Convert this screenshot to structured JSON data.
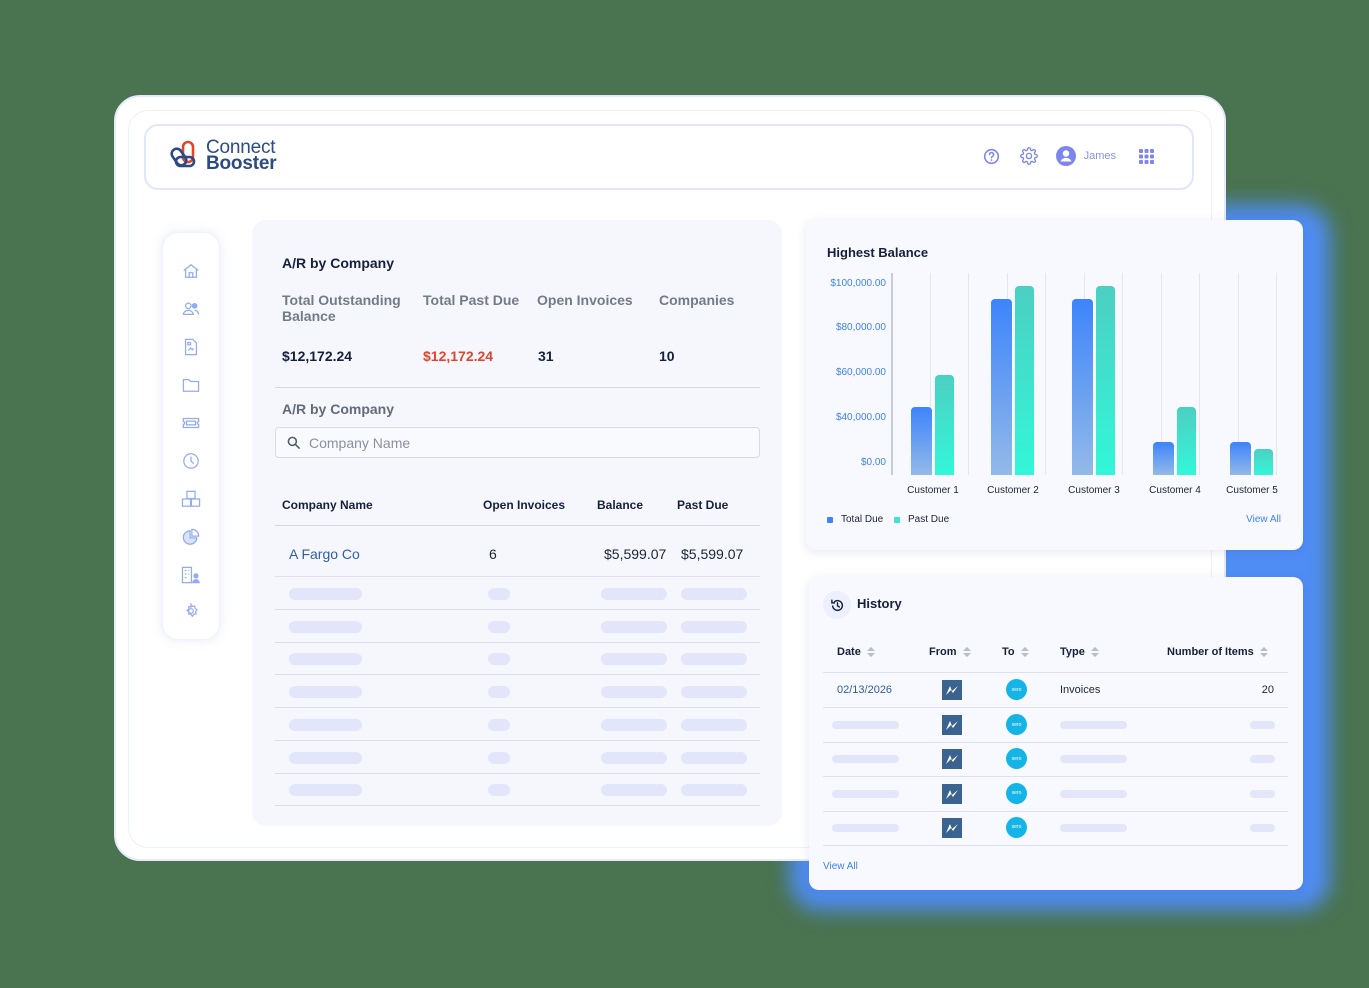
{
  "app": {
    "logo": {
      "line1": "Connect",
      "line2": "Booster"
    },
    "header": {
      "user_name": "James",
      "icons": [
        "help-circle-icon",
        "gear-icon",
        "user-avatar-icon",
        "apps-grid-icon"
      ]
    },
    "sidebar": {
      "items": [
        {
          "icon": "home-icon"
        },
        {
          "icon": "users-icon"
        },
        {
          "icon": "document-icon"
        },
        {
          "icon": "folder-icon"
        },
        {
          "icon": "ticket-icon"
        },
        {
          "icon": "clock-icon"
        },
        {
          "icon": "boxes-icon"
        },
        {
          "icon": "pie-chart-icon"
        },
        {
          "icon": "building-user-icon"
        },
        {
          "icon": "settings-icon"
        }
      ]
    }
  },
  "ar": {
    "title": "A/R by Company",
    "stats": [
      {
        "label": "Total Outstanding Balance",
        "value": "$12,172.24"
      },
      {
        "label": "Total Past Due",
        "value": "$12,172.24",
        "color": "#e0452c"
      },
      {
        "label": "Open Invoices",
        "value": "31"
      },
      {
        "label": "Companies",
        "value": "10"
      }
    ],
    "subtitle": "A/R by Company",
    "search_placeholder": "Company Name",
    "columns": [
      "Company Name",
      "Open Invoices",
      "Balance",
      "Past Due"
    ],
    "rows": [
      {
        "company": "A Fargo Co",
        "open_invoices": "6",
        "balance": "$5,599.07",
        "past_due": "$5,599.07"
      }
    ],
    "placeholder_rows": 7
  },
  "chart": {
    "title": "Highest Balance",
    "view_all": "View All",
    "legend": [
      {
        "label": "Total Due",
        "color": "#3d84fb"
      },
      {
        "label": "Past Due",
        "color": "#3ce6d0"
      }
    ]
  },
  "chart_data": {
    "type": "bar",
    "title": "Highest Balance",
    "categories": [
      "Customer 1",
      "Customer 2",
      "Customer 3",
      "Customer 4",
      "Customer 5"
    ],
    "series": [
      {
        "name": "Total Due",
        "values": [
          45000,
          93000,
          93000,
          23000,
          23000
        ]
      },
      {
        "name": "Past Due",
        "values": [
          59000,
          99000,
          99000,
          45000,
          18000
        ]
      }
    ],
    "yticks": [
      "$100,000.00",
      "$80,000.00",
      "$60,000.00",
      "$40,000.00",
      "$0.00"
    ],
    "ytick_values": [
      100000,
      80000,
      60000,
      40000,
      0
    ],
    "xlabel": "",
    "ylabel": "",
    "ylim": [
      0,
      100000
    ],
    "grid": true,
    "legend_position": "bottom-left"
  },
  "history": {
    "title": "History",
    "columns": [
      "Date",
      "From",
      "To",
      "Type",
      "Number of Items"
    ],
    "rows": [
      {
        "date": "02/13/2026",
        "from_icon": "connectwise-icon",
        "to_icon": "xero-icon",
        "type": "Invoices",
        "items": "20"
      }
    ],
    "placeholder_rows": 4,
    "to_label": "xero",
    "view_all": "View All"
  }
}
